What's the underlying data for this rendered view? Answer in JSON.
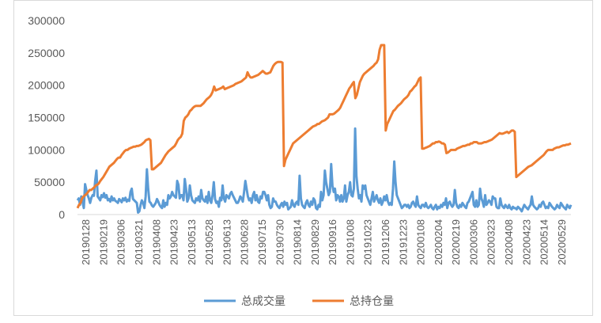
{
  "chart_data": {
    "type": "line",
    "title": "",
    "xlabel": "",
    "ylabel": "",
    "ylim": [
      0,
      300000
    ],
    "y_ticks": [
      0,
      50000,
      100000,
      150000,
      200000,
      250000,
      300000
    ],
    "y_tick_labels": [
      "0",
      "50000",
      "100000",
      "150000",
      "200000",
      "250000",
      "300000"
    ],
    "x_tick_labels": [
      "20190128",
      "20190219",
      "20190306",
      "20190321",
      "20190408",
      "20190423",
      "20190513",
      "20190528",
      "20190613",
      "20190628",
      "20190715",
      "20190730",
      "20190814",
      "20190829",
      "20190916",
      "20191008",
      "20191023",
      "20191206",
      "20191223",
      "20200108",
      "20200204",
      "20200219",
      "20200306",
      "20200323",
      "20200408",
      "20200423",
      "20200514",
      "20200529"
    ],
    "grid": false,
    "legend_position": "bottom",
    "colors": {
      "volume": "#5b9bd5",
      "open_interest": "#ed7d31"
    },
    "series": [
      {
        "name": "总成交量",
        "values": [
          22000,
          25000,
          15000,
          28000,
          20000,
          10000,
          47000,
          38000,
          30000,
          25000,
          18000,
          26000,
          30000,
          29000,
          52000,
          68000,
          28000,
          25000,
          22000,
          30000,
          27000,
          33000,
          26000,
          30000,
          22000,
          24000,
          20000,
          28000,
          22000,
          25000,
          21000,
          20000,
          18000,
          24000,
          22000,
          19000,
          25000,
          22000,
          26000,
          20000,
          23000,
          21000,
          35000,
          40000,
          24000,
          22000,
          20000,
          18000,
          3000,
          5000,
          15000,
          22000,
          18000,
          10000,
          28000,
          70000,
          40000,
          20000,
          18000,
          14000,
          12000,
          15000,
          18000,
          24000,
          20000,
          15000,
          12000,
          10000,
          22000,
          12000,
          18000,
          15000,
          30000,
          25000,
          28000,
          35000,
          30000,
          28000,
          26000,
          52000,
          46000,
          25000,
          30000,
          30000,
          22000,
          55000,
          40000,
          20000,
          25000,
          45000,
          30000,
          22000,
          20000,
          18000,
          25000,
          22000,
          28000,
          20000,
          38000,
          25000,
          22000,
          20000,
          28000,
          18000,
          35000,
          22000,
          18000,
          30000,
          50000,
          24000,
          18000,
          20000,
          12000,
          26000,
          22000,
          45000,
          25000,
          20000,
          30000,
          28000,
          25000,
          32000,
          35000,
          30000,
          26000,
          22000,
          18000,
          18000,
          22000,
          28000,
          25000,
          20000,
          35000,
          52000,
          40000,
          28000,
          22000,
          25000,
          18000,
          30000,
          35000,
          22000,
          30000,
          20000,
          18000,
          28000,
          25000,
          35000,
          35000,
          30000,
          22000,
          30000,
          15000,
          10000,
          12000,
          25000,
          20000,
          20000,
          15000,
          12000,
          10000,
          15000,
          18000,
          12000,
          20000,
          15000,
          18000,
          8000,
          10000,
          12000,
          22000,
          15000,
          12000,
          18000,
          20000,
          15000,
          60000,
          25000,
          15000,
          12000,
          10000,
          18000,
          22000,
          15000,
          12000,
          20000,
          15000,
          25000,
          22000,
          10000,
          8000,
          15000,
          12000,
          35000,
          22000,
          30000,
          68000,
          50000,
          40000,
          30000,
          35000,
          78000,
          45000,
          35000,
          40000,
          22000,
          30000,
          28000,
          20000,
          30000,
          20000,
          25000,
          45000,
          20000,
          30000,
          35000,
          50000,
          30000,
          28000,
          40000,
          133000,
          60000,
          40000,
          25000,
          30000,
          20000,
          45000,
          40000,
          45000,
          30000,
          25000,
          20000,
          15000,
          25000,
          35000,
          20000,
          25000,
          30000,
          22000,
          18000,
          25000,
          15000,
          20000,
          28000,
          22000,
          30000,
          20000,
          15000,
          18000,
          15000,
          40000,
          82000,
          50000,
          30000,
          25000,
          20000,
          15000,
          10000,
          12000,
          15000,
          15000,
          12000,
          15000,
          10000,
          12000,
          18000,
          20000,
          15000,
          12000,
          28000,
          15000,
          12000,
          10000,
          15000,
          15000,
          12000,
          18000,
          12000,
          10000,
          12000,
          15000,
          10000,
          8000,
          12000,
          15000,
          8000,
          12000,
          10000,
          15000,
          12000,
          18000,
          15000,
          25000,
          10000,
          18000,
          20000,
          15000,
          12000,
          15000,
          38000,
          18000,
          12000,
          10000,
          15000,
          12000,
          18000,
          15000,
          12000,
          10000,
          18000,
          20000,
          25000,
          30000,
          35000,
          15000,
          12000,
          22000,
          12000,
          15000,
          40000,
          25000,
          20000,
          12000,
          30000,
          15000,
          18000,
          22000,
          20000,
          15000,
          28000,
          25000,
          25000,
          12000,
          10000,
          10000,
          25000,
          15000,
          12000,
          10000,
          15000,
          12000,
          10000,
          15000,
          10000,
          8000,
          12000,
          10000,
          10000,
          8000,
          12000,
          10000,
          8000,
          5000,
          10000,
          15000,
          12000,
          10000,
          8000,
          12000,
          15000,
          28000,
          15000,
          12000,
          10000,
          8000,
          10000,
          15000,
          12000,
          18000,
          20000,
          15000,
          10000,
          12000,
          10000,
          18000,
          15000,
          12000,
          10000,
          8000,
          10000,
          15000,
          12000,
          10000,
          18000,
          15000,
          12000,
          10000,
          8000,
          15000,
          12000,
          10000,
          15000
        ]
      },
      {
        "name": "总持仓量",
        "values": [
          10000,
          15000,
          18000,
          25000,
          28000,
          30000,
          32000,
          35000,
          38000,
          38000,
          40000,
          42000,
          45000,
          46000,
          48000,
          52000,
          55000,
          58000,
          62000,
          66000,
          70000,
          74000,
          76000,
          78000,
          80000,
          83000,
          86000,
          88000,
          88000,
          92000,
          95000,
          98000,
          100000,
          100000,
          102000,
          103000,
          104000,
          105000,
          105000,
          106000,
          106000,
          107000,
          108000,
          110000,
          112000,
          115000,
          116000,
          117000,
          115000,
          70000,
          70000,
          72000,
          74000,
          76000,
          78000,
          80000,
          84000,
          88000,
          92000,
          95000,
          98000,
          100000,
          102000,
          104000,
          106000,
          110000,
          115000,
          118000,
          120000,
          125000,
          145000,
          150000,
          152000,
          155000,
          160000,
          162000,
          165000,
          167000,
          168000,
          168000,
          168000,
          168000,
          170000,
          172000,
          175000,
          178000,
          180000,
          182000,
          185000,
          190000,
          198000,
          192000,
          193000,
          194000,
          195000,
          196000,
          198000,
          194000,
          195000,
          196000,
          197000,
          198000,
          199000,
          200000,
          202000,
          203000,
          204000,
          205000,
          206000,
          208000,
          210000,
          212000,
          220000,
          215000,
          212000,
          212000,
          213000,
          214000,
          215000,
          216000,
          218000,
          220000,
          222000,
          220000,
          218000,
          218000,
          219000,
          220000,
          225000,
          230000,
          233000,
          235000,
          236000,
          236000,
          236000,
          235000,
          75000,
          85000,
          90000,
          95000,
          100000,
          105000,
          110000,
          112000,
          114000,
          116000,
          118000,
          120000,
          122000,
          124000,
          126000,
          128000,
          130000,
          132000,
          134000,
          136000,
          137000,
          138000,
          140000,
          140000,
          142000,
          144000,
          145000,
          146000,
          148000,
          150000,
          155000,
          155000,
          155000,
          156000,
          158000,
          160000,
          162000,
          165000,
          170000,
          175000,
          180000,
          185000,
          190000,
          195000,
          198000,
          202000,
          205000,
          180000,
          185000,
          195000,
          205000,
          210000,
          215000,
          218000,
          220000,
          222000,
          224000,
          226000,
          228000,
          230000,
          233000,
          235000,
          240000,
          255000,
          262000,
          262000,
          262000,
          130000,
          140000,
          145000,
          150000,
          155000,
          160000,
          162000,
          165000,
          168000,
          170000,
          172000,
          175000,
          178000,
          180000,
          182000,
          185000,
          190000,
          192000,
          195000,
          198000,
          200000,
          205000,
          210000,
          212000,
          102000,
          102000,
          103000,
          104000,
          105000,
          106000,
          108000,
          110000,
          110000,
          112000,
          112000,
          113000,
          112000,
          110000,
          110000,
          108000,
          95000,
          96000,
          98000,
          100000,
          100000,
          100000,
          100000,
          102000,
          103000,
          104000,
          105000,
          106000,
          106000,
          107000,
          108000,
          108000,
          110000,
          110000,
          112000,
          112000,
          112000,
          110000,
          110000,
          110000,
          111000,
          112000,
          112000,
          113000,
          114000,
          115000,
          116000,
          118000,
          120000,
          122000,
          124000,
          126000,
          125000,
          125000,
          126000,
          127000,
          128000,
          126000,
          128000,
          130000,
          130000,
          128000,
          58000,
          60000,
          62000,
          64000,
          66000,
          68000,
          70000,
          72000,
          74000,
          75000,
          76000,
          78000,
          80000,
          82000,
          84000,
          86000,
          88000,
          90000,
          92000,
          95000,
          98000,
          100000,
          100000,
          100000,
          100000,
          102000,
          103000,
          104000,
          104000,
          105000,
          106000,
          107000,
          107000,
          108000,
          108000,
          109000,
          110000
        ]
      }
    ]
  }
}
